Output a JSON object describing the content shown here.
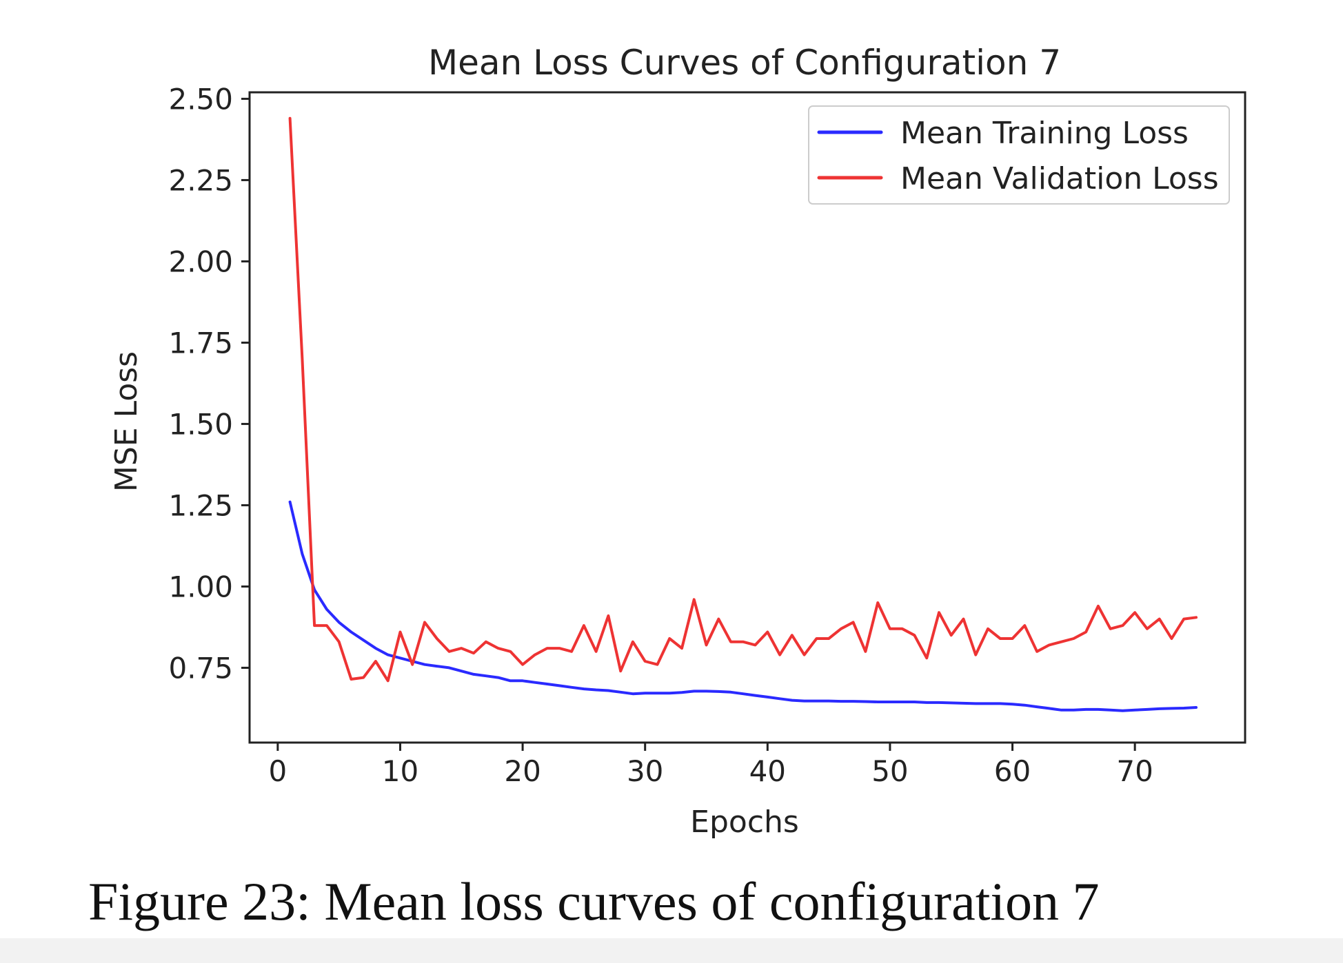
{
  "chart_data": {
    "type": "line",
    "title": "Mean Loss Curves of Configuration 7",
    "xlabel": "Epochs",
    "ylabel": "MSE Loss",
    "xlim": [
      -2.3,
      79
    ],
    "ylim": [
      0.52,
      2.52
    ],
    "xticks": [
      0,
      10,
      20,
      30,
      40,
      50,
      60,
      70
    ],
    "xtick_labels": [
      "0",
      "10",
      "20",
      "30",
      "40",
      "50",
      "60",
      "70"
    ],
    "yticks": [
      0.75,
      1.0,
      1.25,
      1.5,
      1.75,
      2.0,
      2.25,
      2.5
    ],
    "ytick_labels": [
      "0.75",
      "1.00",
      "1.25",
      "1.50",
      "1.75",
      "2.00",
      "2.25",
      "2.50"
    ],
    "grid": false,
    "legend_position": "top-right",
    "x": [
      1,
      2,
      3,
      4,
      5,
      6,
      7,
      8,
      9,
      10,
      11,
      12,
      13,
      14,
      15,
      16,
      17,
      18,
      19,
      20,
      21,
      22,
      23,
      24,
      25,
      26,
      27,
      28,
      29,
      30,
      31,
      32,
      33,
      34,
      35,
      36,
      37,
      38,
      39,
      40,
      41,
      42,
      43,
      44,
      45,
      46,
      47,
      48,
      49,
      50,
      51,
      52,
      53,
      54,
      55,
      56,
      57,
      58,
      59,
      60,
      61,
      62,
      63,
      64,
      65,
      66,
      67,
      68,
      69,
      70,
      71,
      72,
      73,
      74,
      75
    ],
    "series": [
      {
        "name": "Mean Training Loss",
        "color": "#2a2aff",
        "values": [
          1.26,
          1.1,
          0.99,
          0.93,
          0.89,
          0.86,
          0.835,
          0.81,
          0.79,
          0.78,
          0.77,
          0.76,
          0.755,
          0.75,
          0.74,
          0.73,
          0.725,
          0.72,
          0.71,
          0.71,
          0.705,
          0.7,
          0.695,
          0.69,
          0.685,
          0.682,
          0.68,
          0.675,
          0.67,
          0.672,
          0.672,
          0.672,
          0.674,
          0.678,
          0.678,
          0.677,
          0.675,
          0.67,
          0.665,
          0.66,
          0.655,
          0.65,
          0.648,
          0.648,
          0.648,
          0.647,
          0.647,
          0.646,
          0.645,
          0.645,
          0.645,
          0.645,
          0.643,
          0.643,
          0.642,
          0.641,
          0.64,
          0.64,
          0.64,
          0.638,
          0.635,
          0.63,
          0.625,
          0.62,
          0.62,
          0.622,
          0.622,
          0.62,
          0.618,
          0.62,
          0.622,
          0.624,
          0.625,
          0.626,
          0.628
        ]
      },
      {
        "name": "Mean Validation Loss",
        "color": "#ee3333",
        "values": [
          2.44,
          1.7,
          0.88,
          0.88,
          0.83,
          0.715,
          0.72,
          0.77,
          0.71,
          0.86,
          0.76,
          0.89,
          0.84,
          0.8,
          0.81,
          0.795,
          0.83,
          0.81,
          0.8,
          0.76,
          0.79,
          0.81,
          0.81,
          0.8,
          0.88,
          0.8,
          0.91,
          0.74,
          0.83,
          0.77,
          0.76,
          0.84,
          0.81,
          0.96,
          0.82,
          0.9,
          0.83,
          0.83,
          0.82,
          0.86,
          0.79,
          0.85,
          0.79,
          0.84,
          0.84,
          0.87,
          0.89,
          0.8,
          0.95,
          0.87,
          0.87,
          0.85,
          0.78,
          0.92,
          0.85,
          0.9,
          0.79,
          0.87,
          0.84,
          0.84,
          0.88,
          0.8,
          0.82,
          0.83,
          0.84,
          0.86,
          0.94,
          0.87,
          0.88,
          0.92,
          0.87,
          0.9,
          0.84,
          0.9,
          0.905
        ]
      }
    ]
  },
  "caption": "Figure 23: Mean loss curves of configuration 7"
}
